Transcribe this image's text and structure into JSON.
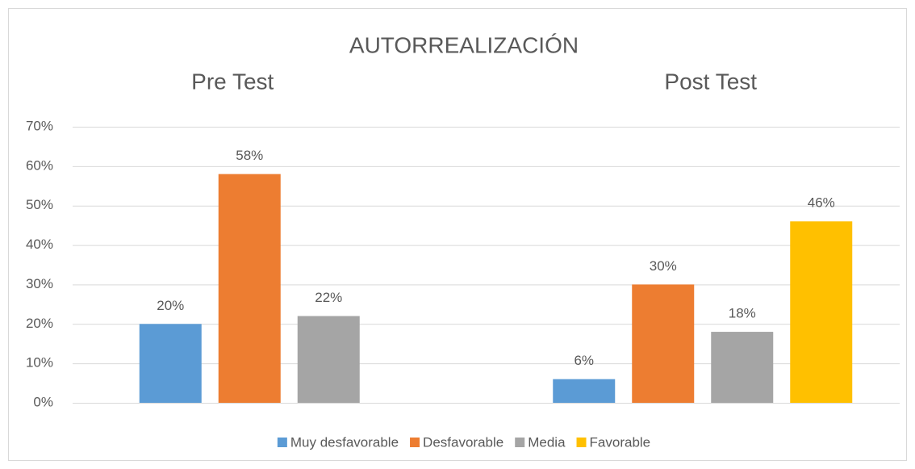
{
  "chart_data": {
    "type": "bar",
    "title": "AUTORREALIZACIÓN",
    "categories": [
      "Pre Test",
      "Post Test"
    ],
    "series": [
      {
        "name": "Muy desfavorable",
        "color": "#5b9bd5",
        "values": [
          20,
          6
        ],
        "value_labels": [
          "20%",
          "6%"
        ]
      },
      {
        "name": "Desfavorable",
        "color": "#ed7d31",
        "values": [
          58,
          30
        ],
        "value_labels": [
          "58%",
          "30%"
        ]
      },
      {
        "name": "Media",
        "color": "#a5a5a5",
        "values": [
          22,
          18
        ],
        "value_labels": [
          "22%",
          "18%"
        ]
      },
      {
        "name": "Favorable",
        "color": "#ffc000",
        "values": [
          null,
          46
        ],
        "value_labels": [
          null,
          "46%"
        ]
      }
    ],
    "ylim": [
      0,
      70
    ],
    "yticks": [
      {
        "value": 0,
        "label": "0%"
      },
      {
        "value": 10,
        "label": "10%"
      },
      {
        "value": 20,
        "label": "20%"
      },
      {
        "value": 30,
        "label": "30%"
      },
      {
        "value": 40,
        "label": "40%"
      },
      {
        "value": 50,
        "label": "50%"
      },
      {
        "value": 60,
        "label": "60%"
      },
      {
        "value": 70,
        "label": "70%"
      }
    ],
    "grid": true,
    "legend": "bottom"
  }
}
